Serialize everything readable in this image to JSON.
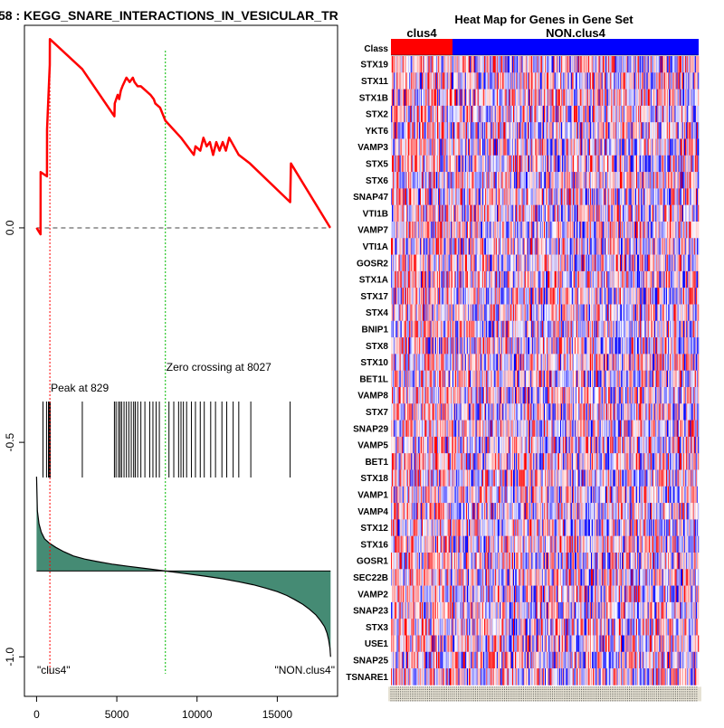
{
  "chart_data": [
    {
      "type": "line",
      "title": "58 : KEGG_SNARE_INTERACTIONS_IN_VESICULAR_TR",
      "xlabel": "",
      "ylabel": "",
      "xlim": [
        -700,
        18700
      ],
      "ylim": [
        -1.09,
        0.47
      ],
      "x_ticks": [
        0,
        5000,
        10000,
        15000
      ],
      "y_ticks": [
        0.0,
        -0.5,
        -1.0
      ],
      "y_tick_labels": [
        "0.0",
        "-0.5",
        "-1.0"
      ],
      "zero_line": 0,
      "enrichment_series": {
        "name": "running enrichment score",
        "color": "#ff0000",
        "x": [
          0,
          250,
          251,
          650,
          651,
          820,
          829,
          2850,
          4850,
          4870,
          5050,
          5150,
          5250,
          5350,
          5600,
          5800,
          6000,
          6100,
          6300,
          6500,
          6800,
          7100,
          7300,
          7400,
          7700,
          8027,
          9000,
          9800,
          9900,
          10200,
          10400,
          10600,
          10800,
          11000,
          11200,
          11400,
          11600,
          11800,
          12000,
          12300,
          12600,
          13300,
          15800,
          15850,
          18300
        ],
        "y": [
          0.0,
          -0.015,
          0.13,
          0.12,
          0.23,
          0.38,
          0.44,
          0.37,
          0.26,
          0.29,
          0.31,
          0.3,
          0.32,
          0.33,
          0.35,
          0.34,
          0.35,
          0.34,
          0.33,
          0.33,
          0.32,
          0.31,
          0.3,
          0.29,
          0.28,
          0.25,
          0.21,
          0.17,
          0.19,
          0.18,
          0.21,
          0.19,
          0.2,
          0.17,
          0.2,
          0.18,
          0.2,
          0.18,
          0.21,
          0.19,
          0.17,
          0.15,
          0.06,
          0.15,
          0.0
        ]
      },
      "hits": [
        400,
        620,
        740,
        800,
        850,
        2850,
        4850,
        4950,
        5100,
        5200,
        5300,
        5450,
        5600,
        5750,
        5900,
        6050,
        6150,
        6300,
        6500,
        6750,
        7050,
        7250,
        7450,
        7650,
        8250,
        8550,
        8850,
        9000,
        9150,
        9350,
        9650,
        9900,
        10200,
        10450,
        10850,
        11150,
        11550,
        11850,
        12250,
        12600,
        13350,
        15800
      ],
      "ranked_metric": {
        "x": [
          0,
          50,
          150,
          300,
          500,
          800,
          1200,
          1700,
          2300,
          3000,
          3800,
          4700,
          5700,
          6800,
          8027,
          9300,
          10500,
          11600,
          12600,
          13500,
          14300,
          15000,
          15600,
          16100,
          16600,
          17000,
          17400,
          17700,
          17950,
          18100,
          18200,
          18280,
          18320
        ],
        "y": [
          -0.58,
          -0.66,
          -0.69,
          -0.71,
          -0.725,
          -0.735,
          -0.745,
          -0.755,
          -0.765,
          -0.772,
          -0.778,
          -0.784,
          -0.789,
          -0.794,
          -0.8,
          -0.806,
          -0.812,
          -0.818,
          -0.825,
          -0.832,
          -0.84,
          -0.848,
          -0.857,
          -0.867,
          -0.878,
          -0.889,
          -0.902,
          -0.916,
          -0.93,
          -0.945,
          -0.96,
          -0.98,
          -1.0
        ],
        "baseline": -0.8,
        "color": "#458b74"
      },
      "peak_x": 829,
      "zero_crossing_x": 8027,
      "annotations": {
        "peak_label": "Peak at 829",
        "zero_crossing_label": "Zero crossing at 8027",
        "left_class_label": "\"clus4\"",
        "right_class_label": "\"NON.clus4\""
      }
    },
    {
      "type": "heatmap",
      "title": "Heat Map for Genes in Gene Set",
      "class_row_label": "Class",
      "classes": [
        {
          "name": "clus4",
          "color": "#ff0000",
          "fraction": 0.2
        },
        {
          "name": "NON.clus4",
          "color": "#0000ff",
          "fraction": 0.8
        }
      ],
      "genes": [
        "STX19",
        "STX11",
        "STX1B",
        "STX2",
        "YKT6",
        "VAMP3",
        "STX5",
        "STX6",
        "SNAP47",
        "VTI1B",
        "VAMP7",
        "VTI1A",
        "GOSR2",
        "STX1A",
        "STX17",
        "STX4",
        "BNIP1",
        "STX8",
        "STX10",
        "BET1L",
        "VAMP8",
        "STX7",
        "SNAP29",
        "VAMP5",
        "BET1",
        "STX18",
        "VAMP1",
        "VAMP4",
        "STX12",
        "STX16",
        "GOSR1",
        "SEC22B",
        "VAMP2",
        "SNAP23",
        "STX3",
        "USE1",
        "SNAP25",
        "TSNARE1"
      ],
      "sample_count": 320,
      "color_scale": {
        "low": "#0000ff",
        "mid": "#ffffff",
        "high": "#ff0000"
      }
    }
  ]
}
